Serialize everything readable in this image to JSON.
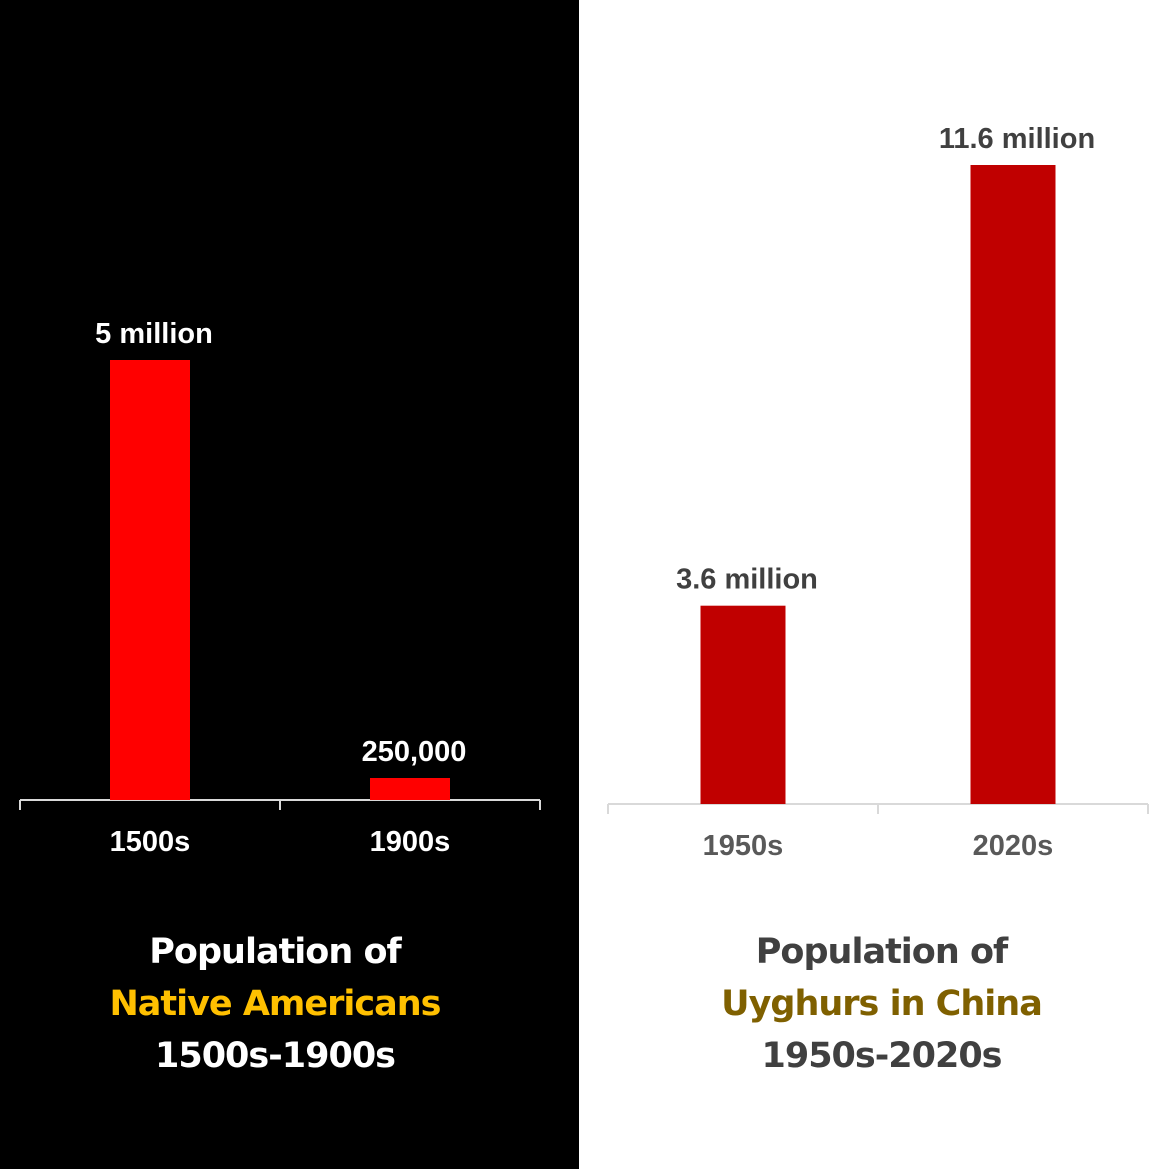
{
  "chart_data": [
    {
      "type": "bar",
      "title_lines": [
        "Population of",
        "Native Americans",
        "1500s-1900s"
      ],
      "categories": [
        "1500s",
        "1900s"
      ],
      "values": [
        5000000,
        250000
      ],
      "data_labels": [
        "5 million",
        "250,000"
      ],
      "ylim": [
        0,
        5000000
      ],
      "colors": {
        "bar": "#ff0000",
        "background": "#000000",
        "text": "#ffffff",
        "axis": "#d9d9d9",
        "highlight": "#ffc000"
      }
    },
    {
      "type": "bar",
      "title_lines": [
        "Population of",
        "Uyghurs in China",
        "1950s-2020s"
      ],
      "categories": [
        "1950s",
        "2020s"
      ],
      "values": [
        3600000,
        11600000
      ],
      "data_labels": [
        "3.6 million",
        "11.6 million"
      ],
      "ylim": [
        0,
        11600000
      ],
      "colors": {
        "bar": "#c00000",
        "background": "#ffffff",
        "text": "#404040",
        "tick_text": "#595959",
        "axis": "#d9d9d9",
        "highlight": "#7f6000"
      }
    }
  ]
}
